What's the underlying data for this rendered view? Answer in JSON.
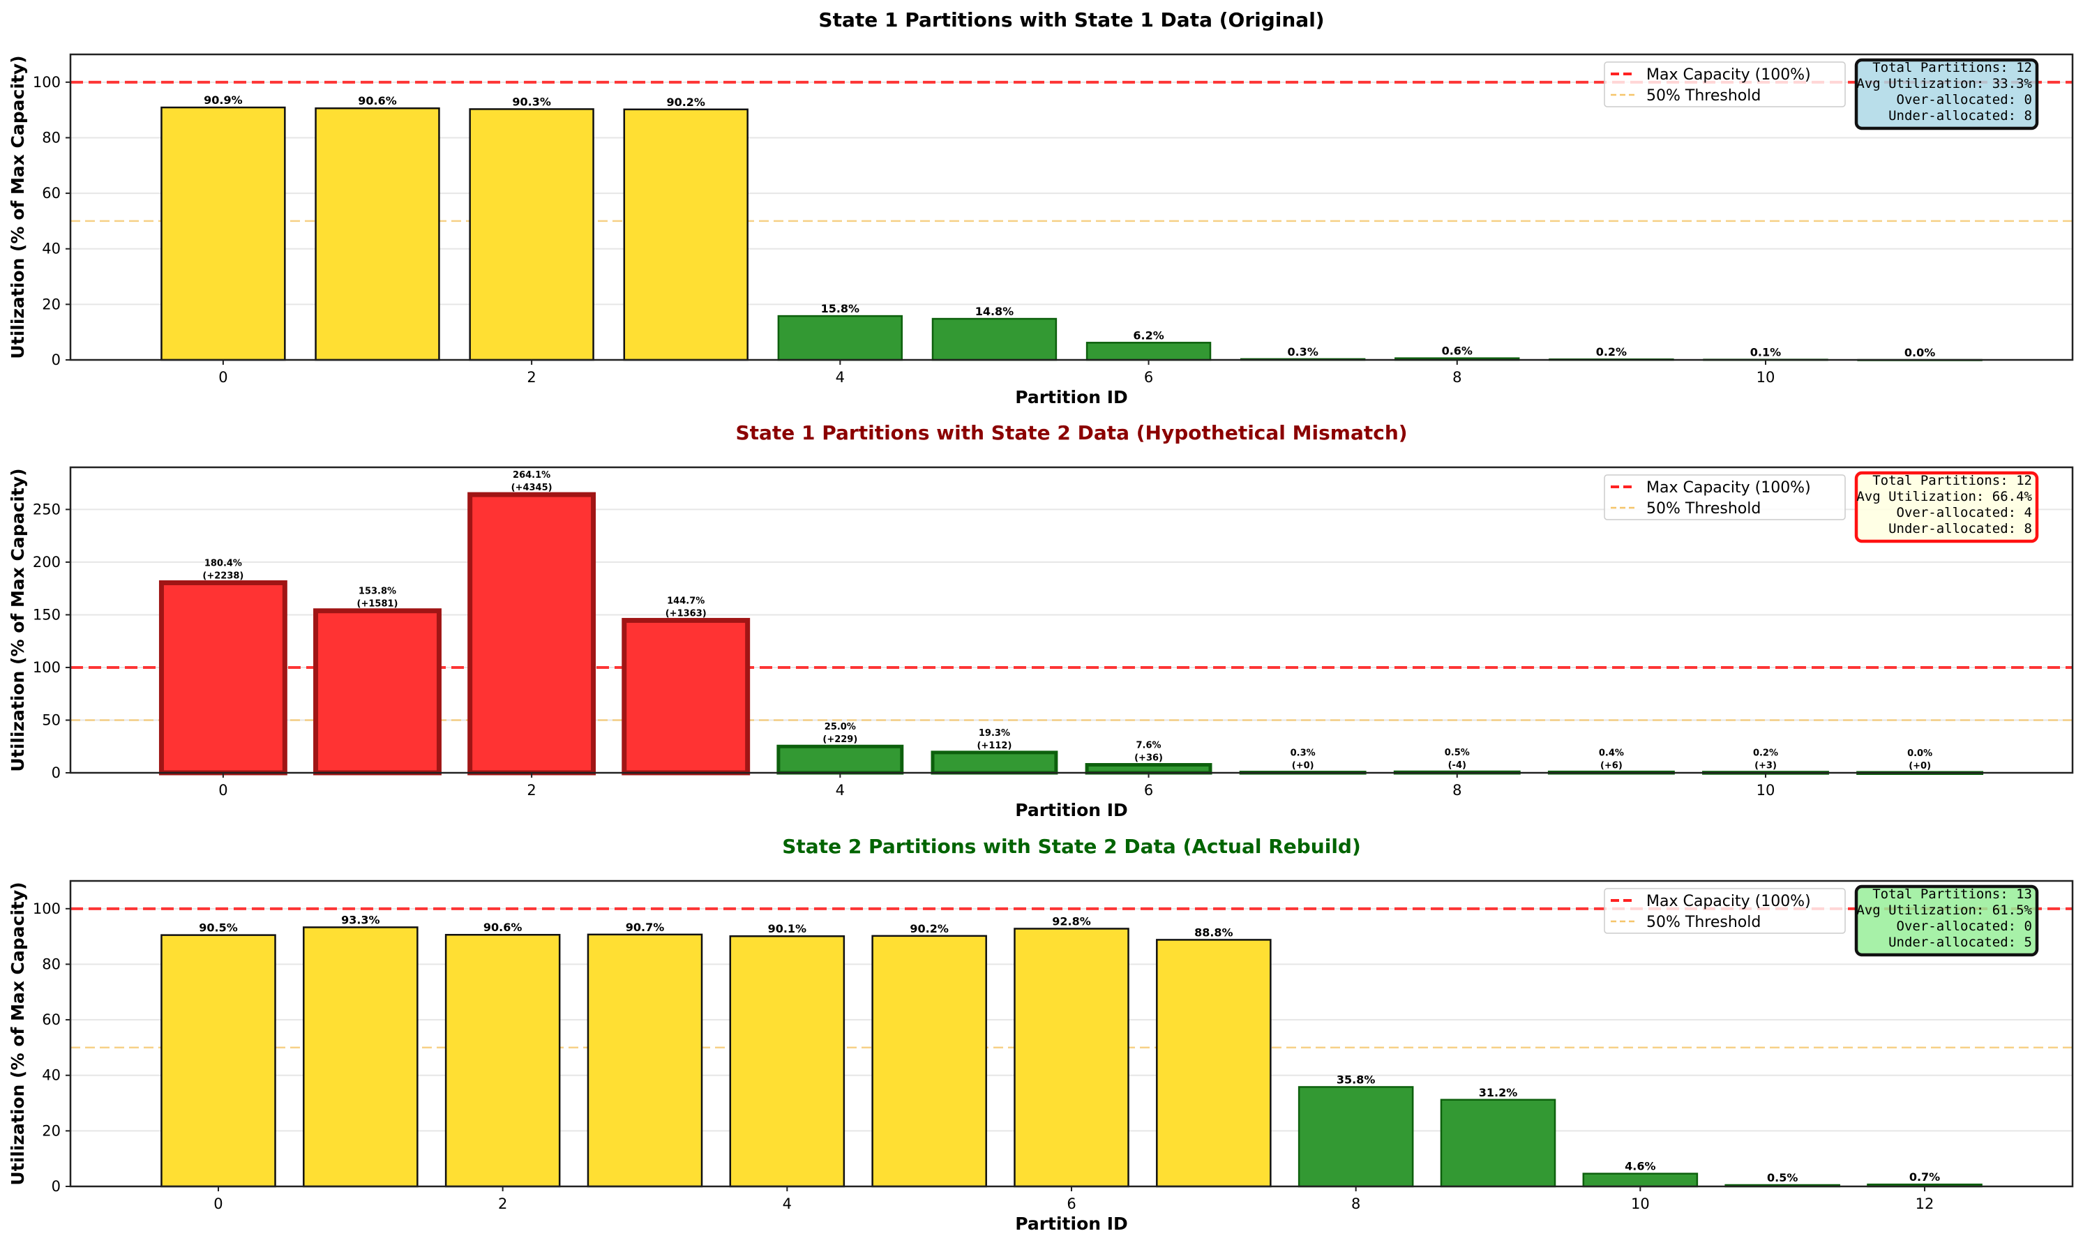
{
  "chart_data": [
    {
      "type": "bar",
      "title": "State 1 Partitions with State 1 Data (Original)",
      "title_color": "#000000",
      "xlabel": "Partition ID",
      "ylabel": "Utilization (% of Max Capacity)",
      "ylim": [
        0,
        110
      ],
      "xlim": [
        -0.99,
        11.99
      ],
      "yticks": [
        0,
        20,
        40,
        60,
        80,
        100
      ],
      "xticks": [
        0,
        2,
        4,
        6,
        8,
        10
      ],
      "grid": "y",
      "categories": [
        0,
        1,
        2,
        3,
        4,
        5,
        6,
        7,
        8,
        9,
        10,
        11
      ],
      "values": [
        90.9,
        90.6,
        90.3,
        90.2,
        15.8,
        14.8,
        6.2,
        0.3,
        0.6,
        0.2,
        0.1,
        0.0
      ],
      "labels": [
        "90.9%",
        "90.6%",
        "90.3%",
        "90.2%",
        "15.8%",
        "14.8%",
        "6.2%",
        "0.3%",
        "0.6%",
        "0.2%",
        "0.1%",
        "0.0%"
      ],
      "diff_labels": [],
      "bar_status": [
        "high",
        "high",
        "high",
        "high",
        "low",
        "low",
        "low",
        "low",
        "low",
        "low",
        "low",
        "low"
      ],
      "reference_lines": [
        {
          "name": "Max Capacity (100%)",
          "y": 100,
          "color": "#ff2222",
          "style": "dashed"
        },
        {
          "name": "50% Threshold",
          "y": 50,
          "color": "#f5c56a",
          "style": "dashed"
        }
      ],
      "legend": {
        "position": "top-right",
        "entries": [
          "Max Capacity (100%)",
          "50% Threshold"
        ]
      },
      "stats_box": {
        "lines": [
          "Total Partitions: 12",
          "Avg Utilization: 33.3%",
          "Over-allocated: 0",
          "Under-allocated: 8"
        ],
        "facecolor": "#add8e6",
        "edgecolor": "#111111"
      }
    },
    {
      "type": "bar",
      "title": "State 1 Partitions with State 2 Data (Hypothetical Mismatch)",
      "title_color": "#8b0000",
      "xlabel": "Partition ID",
      "ylabel": "Utilization (% of Max Capacity)",
      "ylim": [
        0,
        290
      ],
      "xlim": [
        -0.99,
        11.99
      ],
      "yticks": [
        0,
        50,
        100,
        150,
        200,
        250
      ],
      "xticks": [
        0,
        2,
        4,
        6,
        8,
        10
      ],
      "grid": "y",
      "categories": [
        0,
        1,
        2,
        3,
        4,
        5,
        6,
        7,
        8,
        9,
        10,
        11
      ],
      "values": [
        180.4,
        153.8,
        264.1,
        144.7,
        25.0,
        19.3,
        7.6,
        0.3,
        0.5,
        0.4,
        0.2,
        0.0
      ],
      "labels": [
        "180.4%",
        "153.8%",
        "264.1%",
        "144.7%",
        "25.0%",
        "19.3%",
        "7.6%",
        "0.3%",
        "0.5%",
        "0.4%",
        "0.2%",
        "0.0%"
      ],
      "diff_labels": [
        "(+2238)",
        "(+1581)",
        "(+4345)",
        "(+1363)",
        "(+229)",
        "(+112)",
        "(+36)",
        "(+0)",
        "(-4)",
        "(+6)",
        "(+3)",
        "(+0)"
      ],
      "bar_status": [
        "over",
        "over",
        "over",
        "over",
        "low",
        "low",
        "low",
        "low",
        "low",
        "low",
        "low",
        "low"
      ],
      "reference_lines": [
        {
          "name": "Max Capacity (100%)",
          "y": 100,
          "color": "#ff2222",
          "style": "dashed"
        },
        {
          "name": "50% Threshold",
          "y": 50,
          "color": "#f5c56a",
          "style": "dashed"
        }
      ],
      "legend": {
        "position": "top-right",
        "entries": [
          "Max Capacity (100%)",
          "50% Threshold"
        ]
      },
      "stats_box": {
        "lines": [
          "Total Partitions: 12",
          "Avg Utilization: 66.4%",
          "Over-allocated: 4",
          "Under-allocated: 8"
        ],
        "facecolor": "#ffffe0",
        "edgecolor": "#ff1111"
      }
    },
    {
      "type": "bar",
      "title": "State 2 Partitions with State 2 Data (Actual Rebuild)",
      "title_color": "#006400",
      "xlabel": "Partition ID",
      "ylabel": "Utilization (% of Max Capacity)",
      "ylim": [
        0,
        110
      ],
      "xlim": [
        -1.04,
        13.04
      ],
      "yticks": [
        0,
        20,
        40,
        60,
        80,
        100
      ],
      "xticks": [
        0,
        2,
        4,
        6,
        8,
        10,
        12
      ],
      "grid": "y",
      "categories": [
        0,
        1,
        2,
        3,
        4,
        5,
        6,
        7,
        8,
        9,
        10,
        11,
        12
      ],
      "values": [
        90.5,
        93.3,
        90.6,
        90.7,
        90.1,
        90.2,
        92.8,
        88.8,
        35.8,
        31.2,
        4.6,
        0.5,
        0.7
      ],
      "labels": [
        "90.5%",
        "93.3%",
        "90.6%",
        "90.7%",
        "90.1%",
        "90.2%",
        "92.8%",
        "88.8%",
        "35.8%",
        "31.2%",
        "4.6%",
        "0.5%",
        "0.7%"
      ],
      "diff_labels": [],
      "bar_status": [
        "high",
        "high",
        "high",
        "high",
        "high",
        "high",
        "high",
        "high",
        "low",
        "low",
        "low",
        "low",
        "low"
      ],
      "reference_lines": [
        {
          "name": "Max Capacity (100%)",
          "y": 100,
          "color": "#ff2222",
          "style": "dashed"
        },
        {
          "name": "50% Threshold",
          "y": 50,
          "color": "#f5c56a",
          "style": "dashed"
        }
      ],
      "legend": {
        "position": "top-right",
        "entries": [
          "Max Capacity (100%)",
          "50% Threshold"
        ]
      },
      "stats_box": {
        "lines": [
          "Total Partitions: 13",
          "Avg Utilization: 61.5%",
          "Over-allocated: 0",
          "Under-allocated: 5"
        ],
        "facecolor": "#98ee99",
        "edgecolor": "#111111"
      }
    }
  ],
  "colors": {
    "high_fill": "#ffdf33",
    "high_edge": "#111111",
    "low_fill": "#339933",
    "low_edge": "#0d600d",
    "over_fill": "#ff3333",
    "over_edge": "#a01515"
  }
}
